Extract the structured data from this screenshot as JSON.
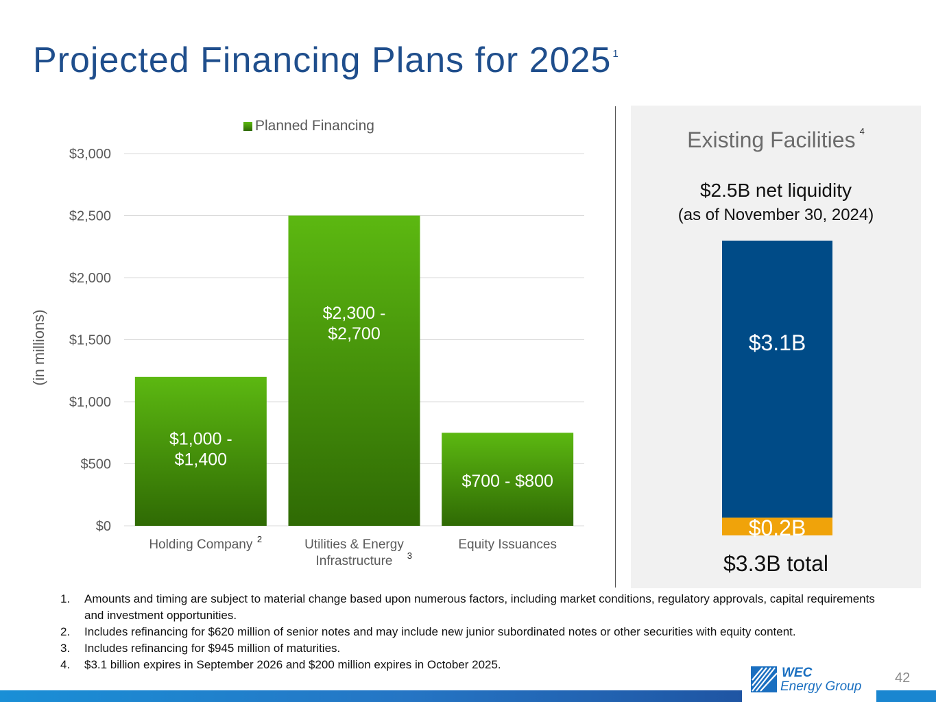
{
  "slide": {
    "title": "Projected Financing Plans for 2025",
    "title_sup": "1",
    "page_number": "42"
  },
  "chart_data": [
    {
      "type": "bar",
      "legend": [
        "Planned Financing"
      ],
      "ylabel": "(in millions)",
      "ylim": [
        0,
        3000
      ],
      "yticks": [
        "$0",
        "$500",
        "$1,000",
        "$1,500",
        "$2,000",
        "$2,500",
        "$3,000"
      ],
      "ytick_values": [
        0,
        500,
        1000,
        1500,
        2000,
        2500,
        3000
      ],
      "grid": true,
      "categories": [
        "Holding Company",
        "Utilities & Energy Infrastructure",
        "Equity Issuances"
      ],
      "category_lines": [
        [
          "Holding Company"
        ],
        [
          "Utilities & Energy",
          "Infrastructure"
        ],
        [
          "Equity Issuances"
        ]
      ],
      "category_sups": [
        "2",
        "3",
        ""
      ],
      "values": [
        1200,
        2500,
        750
      ],
      "data_labels": [
        [
          "$1,000 -",
          "$1,400"
        ],
        [
          "$2,300 -",
          "$2,700"
        ],
        [
          "$700 - $800"
        ]
      ],
      "colors": {
        "bar_top": "#5cb811",
        "bar_bottom": "#2f6a04",
        "grid": "#d9d9d9",
        "axis_text": "#595959"
      }
    },
    {
      "type": "bar",
      "stacked": true,
      "title": "Existing Facilities",
      "categories": [
        "$3.3B total"
      ],
      "series": [
        {
          "values": [
            0.2
          ],
          "label": "$0.2B",
          "color": "#f0a30a"
        },
        {
          "values": [
            3.1
          ],
          "label": "$3.1B",
          "color": "#004b87"
        }
      ]
    }
  ],
  "panel": {
    "title": "Existing Facilities",
    "title_sup": "4",
    "liquidity_line1": "$2.5B net liquidity",
    "liquidity_line2": "(as of November 30, 2024)",
    "total": "$3.3B total"
  },
  "footnotes": [
    {
      "num": "1.",
      "text": "Amounts and timing are subject to material change based upon numerous factors, including market conditions, regulatory approvals, capital requirements and investment opportunities."
    },
    {
      "num": "2.",
      "text": "Includes refinancing for $620 million of senior notes and may include new junior subordinated notes or other securities with equity content."
    },
    {
      "num": "3.",
      "text": "Includes refinancing for $945 million of maturities."
    },
    {
      "num": "4.",
      "text": "$3.1 billion expires in September 2026 and $200 million expires in October 2025."
    }
  ],
  "logo": {
    "line1": "WEC",
    "line2": "Energy Group",
    "color": "#1a6fc0"
  }
}
